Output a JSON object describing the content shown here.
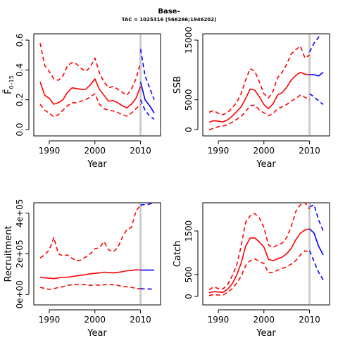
{
  "figure": {
    "title": "Base-",
    "subtitle": "TAC = 1025316 (566266;1946202)"
  },
  "colors": {
    "historic": "#ff0000",
    "projection": "#0000ff",
    "divider": "#cccccc"
  },
  "chart_data": [
    {
      "id": "fbar",
      "type": "line",
      "xlabel": "Year",
      "ylabel": "F̄",
      "ylabel_sub": "0–15",
      "xlim": [
        1988,
        2013
      ],
      "ylim": [
        0,
        0.6
      ],
      "xticks": [
        1990,
        2000,
        2010
      ],
      "yticks": [
        0.0,
        0.2,
        0.4,
        0.6
      ],
      "ytick_labels": [
        "0.0",
        "0.2",
        "0.4",
        "0.6"
      ],
      "vline": 2010,
      "x": [
        1988,
        1989,
        1990,
        1991,
        1992,
        1993,
        1994,
        1995,
        1996,
        1997,
        1998,
        1999,
        2000,
        2001,
        2002,
        2003,
        2004,
        2005,
        2006,
        2007,
        2008,
        2009,
        2010
      ],
      "series": [
        {
          "role": "median",
          "style": "solid",
          "values": [
            0.32,
            0.23,
            0.21,
            0.17,
            0.18,
            0.2,
            0.25,
            0.28,
            0.275,
            0.27,
            0.27,
            0.3,
            0.34,
            0.27,
            0.23,
            0.19,
            0.195,
            0.18,
            0.16,
            0.145,
            0.17,
            0.21,
            0.29
          ]
        },
        {
          "role": "upper",
          "style": "dashed",
          "values": [
            0.58,
            0.43,
            0.39,
            0.34,
            0.33,
            0.36,
            0.43,
            0.45,
            0.44,
            0.41,
            0.39,
            0.42,
            0.48,
            0.38,
            0.32,
            0.28,
            0.29,
            0.27,
            0.25,
            0.23,
            0.27,
            0.34,
            0.45
          ]
        },
        {
          "role": "lower",
          "style": "dashed",
          "values": [
            0.17,
            0.13,
            0.11,
            0.085,
            0.1,
            0.13,
            0.16,
            0.18,
            0.18,
            0.19,
            0.2,
            0.22,
            0.24,
            0.17,
            0.14,
            0.13,
            0.125,
            0.115,
            0.1,
            0.09,
            0.11,
            0.14,
            0.17
          ]
        }
      ],
      "projection_x": [
        2010,
        2011,
        2012,
        2013
      ],
      "projection": [
        {
          "role": "median",
          "style": "solid",
          "values": [
            0.32,
            0.2,
            0.16,
            0.11
          ]
        },
        {
          "role": "upper",
          "style": "dashed",
          "values": [
            0.54,
            0.36,
            0.28,
            0.2
          ]
        },
        {
          "role": "lower",
          "style": "dashed",
          "values": [
            0.2,
            0.13,
            0.09,
            0.07
          ]
        }
      ]
    },
    {
      "id": "ssb",
      "type": "line",
      "xlabel": "Year",
      "ylabel": "SSB",
      "xlim": [
        1988,
        2013
      ],
      "ylim": [
        0,
        15000
      ],
      "xticks": [
        1990,
        2000,
        2010
      ],
      "yticks": [
        0,
        5000,
        15000
      ],
      "ytick_labels": [
        "0",
        "5000",
        "15000"
      ],
      "vline": 2010,
      "x": [
        1988,
        1989,
        1990,
        1991,
        1992,
        1993,
        1994,
        1995,
        1996,
        1997,
        1998,
        1999,
        2000,
        2001,
        2002,
        2003,
        2004,
        2005,
        2006,
        2007,
        2008,
        2009,
        2010
      ],
      "series": [
        {
          "role": "median",
          "style": "solid",
          "values": [
            1200,
            1500,
            1400,
            1300,
            1600,
            2200,
            3000,
            3800,
            5200,
            6800,
            6600,
            5500,
            4200,
            3500,
            4300,
            5800,
            6200,
            7100,
            8300,
            9100,
            9600,
            9300,
            9200
          ]
        },
        {
          "role": "upper",
          "style": "dashed",
          "values": [
            2900,
            3200,
            2700,
            2500,
            2800,
            3600,
            4500,
            6000,
            8300,
            10200,
            9800,
            8000,
            6000,
            5300,
            6400,
            8700,
            9600,
            11000,
            12700,
            13400,
            14000,
            12000,
            12500
          ]
        },
        {
          "role": "lower",
          "style": "dashed",
          "values": [
            0,
            200,
            500,
            600,
            800,
            1200,
            1700,
            2200,
            3000,
            4000,
            4100,
            3300,
            2800,
            2300,
            2700,
            3500,
            3800,
            4200,
            4800,
            5200,
            5800,
            5400,
            5000
          ]
        }
      ],
      "projection_x": [
        2010,
        2011,
        2012,
        2013
      ],
      "projection": [
        {
          "role": "median",
          "style": "solid",
          "values": [
            9200,
            9200,
            9000,
            9600
          ]
        },
        {
          "role": "upper",
          "style": "dashed",
          "values": [
            13000,
            14500,
            15500,
            17000
          ]
        },
        {
          "role": "lower",
          "style": "dashed",
          "values": [
            6000,
            5500,
            4800,
            4200
          ]
        }
      ]
    },
    {
      "id": "recruitment",
      "type": "line",
      "xlabel": "Year",
      "ylabel": "Recruitment",
      "xlim": [
        1988,
        2013
      ],
      "ylim": [
        -20000,
        420000
      ],
      "xticks": [
        1990,
        2000,
        2010
      ],
      "yticks": [
        0,
        200000,
        400000
      ],
      "ytick_labels": [
        "0e+00",
        "2e+05",
        "4e+05"
      ],
      "vline": 2010,
      "x": [
        1988,
        1989,
        1990,
        1991,
        1992,
        1993,
        1994,
        1995,
        1996,
        1997,
        1998,
        1999,
        2000,
        2001,
        2002,
        2003,
        2004,
        2005,
        2006,
        2007,
        2008,
        2009,
        2010
      ],
      "series": [
        {
          "role": "median",
          "style": "solid",
          "values": [
            85000,
            82000,
            80000,
            78000,
            82000,
            84000,
            85000,
            88000,
            92000,
            95000,
            98000,
            102000,
            104000,
            106000,
            110000,
            108000,
            106000,
            109000,
            112000,
            117000,
            118000,
            122000,
            120000
          ]
        },
        {
          "role": "upper",
          "style": "dashed",
          "values": [
            180000,
            195000,
            220000,
            280000,
            200000,
            190000,
            195000,
            178000,
            165000,
            170000,
            185000,
            200000,
            225000,
            230000,
            260000,
            220000,
            210000,
            230000,
            280000,
            320000,
            330000,
            410000,
            440000
          ]
        },
        {
          "role": "lower",
          "style": "dashed",
          "values": [
            35000,
            30000,
            25000,
            28000,
            35000,
            38000,
            45000,
            48000,
            50000,
            50000,
            48000,
            45000,
            48000,
            45000,
            48000,
            50000,
            48000,
            45000,
            40000,
            38000,
            35000,
            30000,
            28000
          ]
        }
      ],
      "projection_x": [
        2010,
        2011,
        2012,
        2013
      ],
      "projection": [
        {
          "role": "median",
          "style": "solid",
          "values": [
            120000,
            120000,
            120000,
            120000
          ]
        },
        {
          "role": "upper",
          "style": "dashed",
          "values": [
            440000,
            442000,
            445000,
            452000
          ]
        },
        {
          "role": "lower",
          "style": "dashed",
          "values": [
            28000,
            27000,
            27000,
            27000
          ]
        }
      ]
    },
    {
      "id": "catch",
      "type": "line",
      "xlabel": "Year",
      "ylabel": "Catch",
      "xlim": [
        1988,
        2013
      ],
      "ylim": [
        -50,
        2000
      ],
      "xticks": [
        1990,
        2000,
        2010
      ],
      "yticks": [
        0,
        500,
        1500
      ],
      "ytick_labels": [
        "0",
        "500",
        "1500"
      ],
      "vline": 2010,
      "x": [
        1988,
        1989,
        1990,
        1991,
        1992,
        1993,
        1994,
        1995,
        1996,
        1997,
        1998,
        1999,
        2000,
        2001,
        2002,
        2003,
        2004,
        2005,
        2006,
        2007,
        2008,
        2009,
        2010
      ],
      "series": [
        {
          "role": "median",
          "style": "solid",
          "values": [
            80,
            110,
            100,
            90,
            160,
            280,
            480,
            760,
            1150,
            1340,
            1340,
            1250,
            1130,
            850,
            820,
            860,
            900,
            980,
            1100,
            1300,
            1450,
            1520,
            1550
          ]
        },
        {
          "role": "upper",
          "style": "dashed",
          "values": [
            150,
            220,
            180,
            170,
            260,
            460,
            700,
            1150,
            1700,
            1850,
            1900,
            1800,
            1580,
            1180,
            1120,
            1180,
            1220,
            1350,
            1600,
            1950,
            2100,
            2150,
            2000
          ]
        },
        {
          "role": "lower",
          "style": "dashed",
          "values": [
            20,
            40,
            30,
            30,
            90,
            170,
            300,
            460,
            700,
            820,
            860,
            800,
            750,
            540,
            550,
            600,
            640,
            680,
            740,
            820,
            950,
            1050,
            1000
          ]
        }
      ],
      "projection_x": [
        2010,
        2011,
        2012,
        2013
      ],
      "projection": [
        {
          "role": "median",
          "style": "solid",
          "values": [
            1550,
            1450,
            1150,
            950
          ]
        },
        {
          "role": "upper",
          "style": "dashed",
          "values": [
            2050,
            2100,
            1750,
            1500
          ]
        },
        {
          "role": "lower",
          "style": "dashed",
          "values": [
            1050,
            800,
            550,
            380
          ]
        }
      ]
    }
  ]
}
